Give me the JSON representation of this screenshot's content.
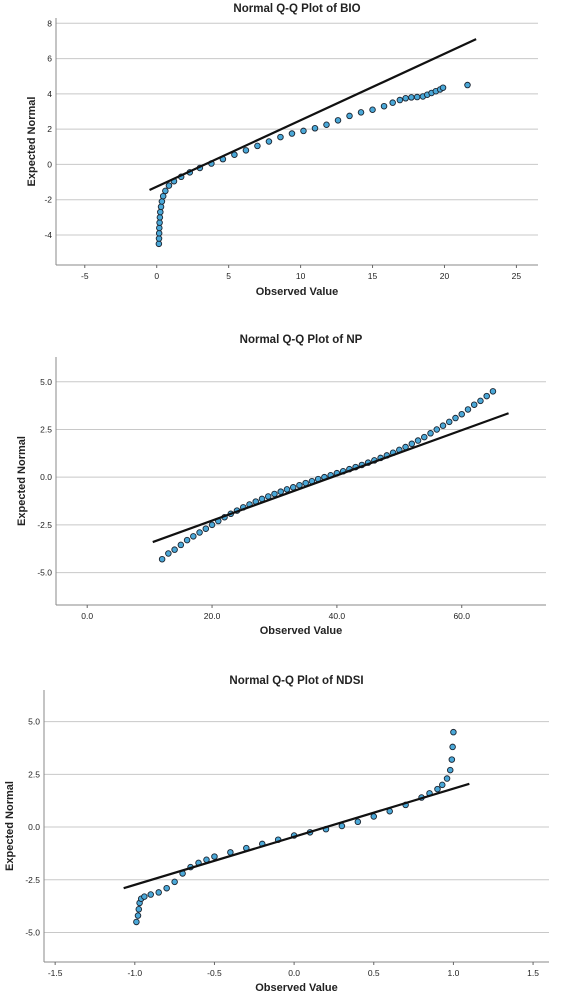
{
  "chart_data": [
    {
      "type": "scatter",
      "title": "Normal Q-Q Plot of BIO",
      "xlabel": "Observed Value",
      "ylabel": "Expected Normal",
      "xlim": [
        -7,
        26.5
      ],
      "ylim": [
        -5.7,
        8.3
      ],
      "xticks": [
        -5,
        0,
        5,
        10,
        15,
        20,
        25
      ],
      "yticks": [
        -4,
        -2,
        0,
        2,
        4,
        6,
        8
      ],
      "grid": "horizontal",
      "reference_line": [
        [
          -0.5,
          -1.45
        ],
        [
          22.2,
          7.1
        ]
      ],
      "series": [
        {
          "x": [
            0.15,
            0.16,
            0.17,
            0.18,
            0.2,
            0.22,
            0.25,
            0.3,
            0.36,
            0.45,
            0.6,
            0.85,
            1.2,
            1.7,
            2.3,
            3.0,
            3.8,
            4.6,
            5.4,
            6.2,
            7.0,
            7.8,
            8.6,
            9.4,
            10.2,
            11.0,
            11.8,
            12.6,
            13.4,
            14.2,
            15.0,
            15.8,
            16.4,
            16.9,
            17.3,
            17.7,
            18.1,
            18.5,
            18.8,
            19.1,
            19.4,
            19.7,
            19.9,
            21.6
          ],
          "y": [
            -4.5,
            -4.2,
            -3.9,
            -3.6,
            -3.3,
            -3.0,
            -2.7,
            -2.4,
            -2.1,
            -1.8,
            -1.5,
            -1.2,
            -0.95,
            -0.7,
            -0.45,
            -0.2,
            0.05,
            0.3,
            0.55,
            0.8,
            1.05,
            1.3,
            1.55,
            1.75,
            1.9,
            2.05,
            2.25,
            2.5,
            2.75,
            2.95,
            3.1,
            3.3,
            3.5,
            3.65,
            3.75,
            3.8,
            3.82,
            3.85,
            3.95,
            4.05,
            4.15,
            4.25,
            4.35,
            4.5
          ]
        }
      ]
    },
    {
      "type": "scatter",
      "title": "Normal Q-Q Plot of NP",
      "xlabel": "Observed Value",
      "ylabel": "Expected Normal",
      "xlim": [
        -5,
        73.5
      ],
      "ylim": [
        -6.7,
        6.3
      ],
      "xticks": [
        0,
        20,
        40,
        60
      ],
      "yticks": [
        -5.0,
        -2.5,
        0.0,
        2.5,
        5.0
      ],
      "grid": "horizontal",
      "reference_line": [
        [
          10.5,
          -3.4
        ],
        [
          67.5,
          3.35
        ]
      ],
      "series": [
        {
          "x": [
            12,
            13,
            14,
            15,
            16,
            17,
            18,
            19,
            20,
            21,
            22,
            23,
            24,
            25,
            26,
            27,
            28,
            29,
            30,
            31,
            32,
            33,
            34,
            35,
            36,
            37,
            38,
            39,
            40,
            41,
            42,
            43,
            44,
            45,
            46,
            47,
            48,
            49,
            50,
            51,
            52,
            53,
            54,
            55,
            56,
            57,
            58,
            59,
            60,
            61,
            62,
            63,
            64,
            65
          ],
          "y": [
            -4.3,
            -4.0,
            -3.8,
            -3.55,
            -3.3,
            -3.1,
            -2.9,
            -2.7,
            -2.5,
            -2.3,
            -2.1,
            -1.92,
            -1.75,
            -1.58,
            -1.43,
            -1.28,
            -1.14,
            -1.01,
            -0.88,
            -0.76,
            -0.64,
            -0.53,
            -0.42,
            -0.31,
            -0.21,
            -0.1,
            0.0,
            0.1,
            0.21,
            0.31,
            0.42,
            0.53,
            0.64,
            0.76,
            0.88,
            1.01,
            1.14,
            1.28,
            1.43,
            1.58,
            1.75,
            1.92,
            2.1,
            2.3,
            2.5,
            2.7,
            2.9,
            3.1,
            3.3,
            3.55,
            3.8,
            4.0,
            4.25,
            4.5
          ]
        }
      ]
    },
    {
      "type": "scatter",
      "title": "Normal Q-Q Plot of NDSI",
      "xlabel": "Observed Value",
      "ylabel": "Expected Normal",
      "xlim": [
        -1.57,
        1.6
      ],
      "ylim": [
        -6.4,
        6.5
      ],
      "xticks": [
        -1.5,
        -1.0,
        -0.5,
        0.0,
        0.5,
        1.0,
        1.5
      ],
      "yticks": [
        -5.0,
        -2.5,
        0.0,
        2.5,
        5.0
      ],
      "grid": "horizontal",
      "reference_line": [
        [
          -1.07,
          -2.9
        ],
        [
          1.1,
          2.05
        ]
      ],
      "series": [
        {
          "x": [
            -0.99,
            -0.98,
            -0.975,
            -0.97,
            -0.96,
            -0.94,
            -0.9,
            -0.85,
            -0.8,
            -0.75,
            -0.7,
            -0.65,
            -0.6,
            -0.55,
            -0.5,
            -0.4,
            -0.3,
            -0.2,
            -0.1,
            0.0,
            0.1,
            0.2,
            0.3,
            0.4,
            0.5,
            0.6,
            0.7,
            0.8,
            0.85,
            0.9,
            0.93,
            0.96,
            0.98,
            0.99,
            0.995,
            1.0
          ],
          "y": [
            -4.5,
            -4.2,
            -3.9,
            -3.6,
            -3.4,
            -3.3,
            -3.2,
            -3.1,
            -2.9,
            -2.6,
            -2.2,
            -1.9,
            -1.7,
            -1.55,
            -1.4,
            -1.2,
            -1.0,
            -0.8,
            -0.6,
            -0.4,
            -0.25,
            -0.1,
            0.05,
            0.25,
            0.5,
            0.75,
            1.05,
            1.4,
            1.6,
            1.8,
            2.0,
            2.3,
            2.7,
            3.2,
            3.8,
            4.5
          ]
        }
      ]
    }
  ]
}
